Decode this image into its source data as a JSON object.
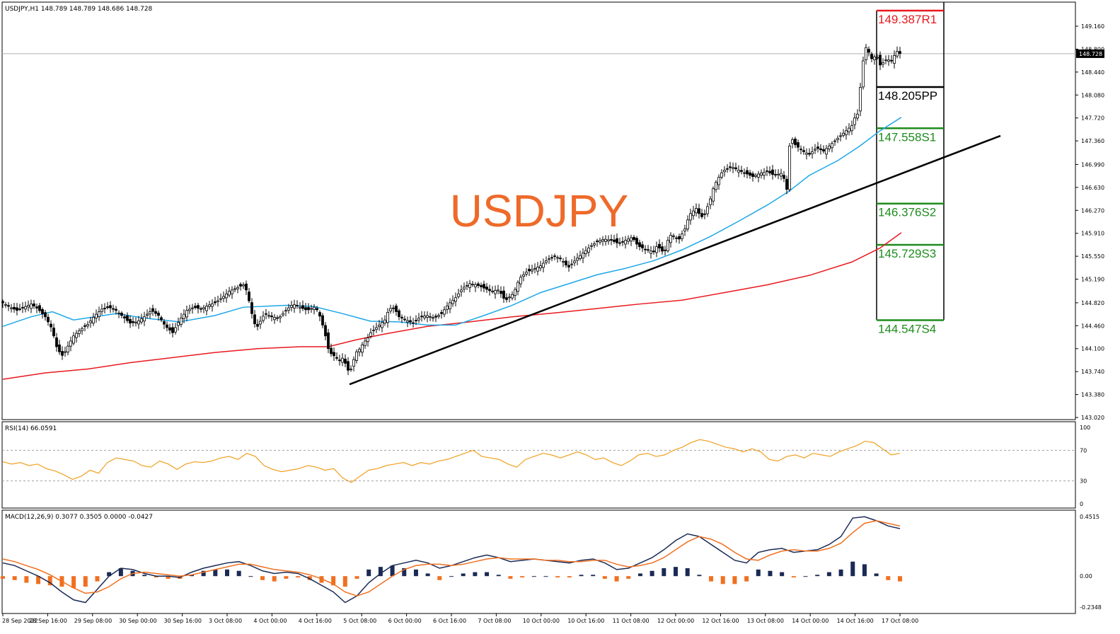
{
  "header": {
    "symbol_info": "USDJPY,H1  148.789 148.789 148.686 148.728",
    "watermark": "USDJPY"
  },
  "colors": {
    "ma_fast": "#1EA7E8",
    "ma_slow": "#E8191F",
    "trendline": "#000000",
    "rsi": "#F0A020",
    "macd_line": "#1A2A55",
    "signal_line": "#F07020",
    "hist_positive": "#1A2A55",
    "hist_negative": "#F07020",
    "pivot_resistance": "#E8191F",
    "pivot_pp": "#000000",
    "pivot_support": "#1E8C1E"
  },
  "chart_data": [
    {
      "type": "candlestick",
      "title": "USDJPY,H1",
      "header_values": {
        "open": 148.789,
        "high": 148.789,
        "low": 148.686,
        "close": 148.728
      },
      "current_price": "148.728",
      "ylim": [
        143.02,
        149.4
      ],
      "y_ticks": [
        "149.160",
        "148.800",
        "148.440",
        "148.080",
        "147.720",
        "147.360",
        "146.990",
        "146.630",
        "146.270",
        "145.910",
        "145.550",
        "145.190",
        "144.820",
        "144.460",
        "144.100",
        "143.740",
        "143.380",
        "143.020"
      ],
      "x_ticks": [
        "28 Sep 2022",
        "28 Sep 16:00",
        "29 Sep 08:00",
        "30 Sep 00:00",
        "30 Sep 16:00",
        "3 Oct 08:00",
        "4 Oct 00:00",
        "4 Oct 16:00",
        "5 Oct 08:00",
        "6 Oct 00:00",
        "6 Oct 16:00",
        "7 Oct 08:00",
        "10 Oct 00:00",
        "10 Oct 16:00",
        "11 Oct 08:00",
        "12 Oct 00:00",
        "12 Oct 16:00",
        "13 Oct 08:00",
        "14 Oct 00:00",
        "14 Oct 16:00",
        "17 Oct 08:00"
      ],
      "close_path": [
        [
          0,
          144.82
        ],
        [
          10,
          144.75
        ],
        [
          20,
          144.7
        ],
        [
          30,
          144.75
        ],
        [
          40,
          144.8
        ],
        [
          50,
          144.72
        ],
        [
          60,
          144.6
        ],
        [
          70,
          144.4
        ],
        [
          75,
          144.15
        ],
        [
          80,
          144.05
        ],
        [
          85,
          143.98
        ],
        [
          90,
          144.1
        ],
        [
          95,
          144.2
        ],
        [
          100,
          144.3
        ],
        [
          110,
          144.4
        ],
        [
          120,
          144.48
        ],
        [
          130,
          144.62
        ],
        [
          140,
          144.72
        ],
        [
          150,
          144.75
        ],
        [
          160,
          144.7
        ],
        [
          170,
          144.6
        ],
        [
          180,
          144.5
        ],
        [
          190,
          144.52
        ],
        [
          200,
          144.6
        ],
        [
          210,
          144.7
        ],
        [
          220,
          144.62
        ],
        [
          230,
          144.45
        ],
        [
          240,
          144.35
        ],
        [
          250,
          144.55
        ],
        [
          260,
          144.7
        ],
        [
          270,
          144.75
        ],
        [
          280,
          144.72
        ],
        [
          290,
          144.78
        ],
        [
          300,
          144.82
        ],
        [
          310,
          144.9
        ],
        [
          320,
          145.0
        ],
        [
          330,
          145.05
        ],
        [
          340,
          145.1
        ],
        [
          345,
          145.0
        ],
        [
          350,
          144.75
        ],
        [
          355,
          144.5
        ],
        [
          360,
          144.45
        ],
        [
          365,
          144.55
        ],
        [
          370,
          144.65
        ],
        [
          380,
          144.6
        ],
        [
          390,
          144.58
        ],
        [
          400,
          144.7
        ],
        [
          410,
          144.8
        ],
        [
          420,
          144.75
        ],
        [
          430,
          144.7
        ],
        [
          440,
          144.75
        ],
        [
          445,
          144.7
        ],
        [
          450,
          144.55
        ],
        [
          455,
          144.35
        ],
        [
          460,
          144.1
        ],
        [
          465,
          144.0
        ],
        [
          470,
          143.98
        ],
        [
          475,
          143.9
        ],
        [
          480,
          143.95
        ],
        [
          485,
          143.85
        ],
        [
          490,
          143.7
        ],
        [
          495,
          143.9
        ],
        [
          500,
          144.05
        ],
        [
          505,
          144.1
        ],
        [
          510,
          144.2
        ],
        [
          515,
          144.25
        ],
        [
          520,
          144.35
        ],
        [
          525,
          144.4
        ],
        [
          530,
          144.45
        ],
        [
          535,
          144.5
        ],
        [
          540,
          144.55
        ],
        [
          545,
          144.7
        ],
        [
          550,
          144.75
        ],
        [
          555,
          144.7
        ],
        [
          560,
          144.6
        ],
        [
          570,
          144.55
        ],
        [
          580,
          144.5
        ],
        [
          590,
          144.6
        ],
        [
          600,
          144.62
        ],
        [
          610,
          144.58
        ],
        [
          620,
          144.65
        ],
        [
          630,
          144.8
        ],
        [
          640,
          144.9
        ],
        [
          650,
          145.05
        ],
        [
          660,
          145.12
        ],
        [
          670,
          145.1
        ],
        [
          680,
          145.05
        ],
        [
          690,
          145.0
        ],
        [
          700,
          145.02
        ],
        [
          705,
          144.95
        ],
        [
          710,
          144.85
        ],
        [
          715,
          144.9
        ],
        [
          720,
          144.95
        ],
        [
          725,
          145.05
        ],
        [
          730,
          145.2
        ],
        [
          740,
          145.3
        ],
        [
          750,
          145.35
        ],
        [
          760,
          145.4
        ],
        [
          770,
          145.5
        ],
        [
          780,
          145.55
        ],
        [
          790,
          145.5
        ],
        [
          795,
          145.42
        ],
        [
          800,
          145.38
        ],
        [
          810,
          145.5
        ],
        [
          820,
          145.6
        ],
        [
          830,
          145.7
        ],
        [
          840,
          145.78
        ],
        [
          850,
          145.82
        ],
        [
          860,
          145.8
        ],
        [
          870,
          145.75
        ],
        [
          880,
          145.8
        ],
        [
          890,
          145.85
        ],
        [
          895,
          145.75
        ],
        [
          900,
          145.7
        ],
        [
          910,
          145.65
        ],
        [
          920,
          145.62
        ],
        [
          925,
          145.72
        ],
        [
          930,
          145.65
        ],
        [
          935,
          145.6
        ],
        [
          940,
          145.8
        ],
        [
          945,
          145.9
        ],
        [
          950,
          145.85
        ],
        [
          955,
          145.8
        ],
        [
          960,
          145.9
        ],
        [
          965,
          146.0
        ],
        [
          970,
          146.2
        ],
        [
          975,
          146.25
        ],
        [
          980,
          146.3
        ],
        [
          985,
          146.2
        ],
        [
          990,
          146.15
        ],
        [
          995,
          146.3
        ],
        [
          1000,
          146.45
        ],
        [
          1005,
          146.65
        ],
        [
          1010,
          146.75
        ],
        [
          1015,
          146.85
        ],
        [
          1020,
          146.9
        ],
        [
          1030,
          146.95
        ],
        [
          1040,
          146.9
        ],
        [
          1050,
          146.85
        ],
        [
          1060,
          146.8
        ],
        [
          1070,
          146.85
        ],
        [
          1080,
          146.88
        ],
        [
          1090,
          146.82
        ],
        [
          1100,
          146.85
        ],
        [
          1105,
          146.75
        ],
        [
          1108,
          146.6
        ],
        [
          1110,
          147.2
        ],
        [
          1115,
          147.4
        ],
        [
          1120,
          147.3
        ],
        [
          1130,
          147.2
        ],
        [
          1140,
          147.15
        ],
        [
          1150,
          147.25
        ],
        [
          1160,
          147.2
        ],
        [
          1170,
          147.3
        ],
        [
          1180,
          147.4
        ],
        [
          1190,
          147.5
        ],
        [
          1200,
          147.6
        ],
        [
          1205,
          147.75
        ],
        [
          1210,
          147.8
        ],
        [
          1212,
          148.2
        ],
        [
          1215,
          148.5
        ],
        [
          1218,
          148.85
        ],
        [
          1222,
          148.8
        ],
        [
          1228,
          148.65
        ],
        [
          1235,
          148.7
        ],
        [
          1240,
          148.55
        ],
        [
          1245,
          148.6
        ],
        [
          1250,
          148.65
        ],
        [
          1255,
          148.6
        ],
        [
          1260,
          148.7
        ],
        [
          1265,
          148.78
        ],
        [
          1268,
          148.73
        ]
      ],
      "ma_fast_path": [
        [
          0,
          144.45
        ],
        [
          40,
          144.6
        ],
        [
          70,
          144.68
        ],
        [
          100,
          144.55
        ],
        [
          130,
          144.6
        ],
        [
          160,
          144.65
        ],
        [
          200,
          144.58
        ],
        [
          250,
          144.52
        ],
        [
          300,
          144.62
        ],
        [
          340,
          144.75
        ],
        [
          400,
          144.78
        ],
        [
          440,
          144.76
        ],
        [
          480,
          144.65
        ],
        [
          520,
          144.53
        ],
        [
          560,
          144.52
        ],
        [
          600,
          144.47
        ],
        [
          640,
          144.47
        ],
        [
          680,
          144.62
        ],
        [
          720,
          144.78
        ],
        [
          760,
          144.98
        ],
        [
          800,
          145.12
        ],
        [
          840,
          145.26
        ],
        [
          880,
          145.36
        ],
        [
          920,
          145.48
        ],
        [
          960,
          145.65
        ],
        [
          1000,
          145.86
        ],
        [
          1040,
          146.1
        ],
        [
          1080,
          146.35
        ],
        [
          1110,
          146.56
        ],
        [
          1140,
          146.82
        ],
        [
          1180,
          147.05
        ],
        [
          1210,
          147.27
        ],
        [
          1240,
          147.52
        ],
        [
          1270,
          147.73
        ]
      ],
      "ma_slow_path": [
        [
          0,
          143.62
        ],
        [
          60,
          143.72
        ],
        [
          120,
          143.78
        ],
        [
          180,
          143.88
        ],
        [
          240,
          143.96
        ],
        [
          300,
          144.04
        ],
        [
          360,
          144.1
        ],
        [
          420,
          144.13
        ],
        [
          460,
          144.13
        ],
        [
          500,
          144.24
        ],
        [
          540,
          144.33
        ],
        [
          600,
          144.45
        ],
        [
          660,
          144.52
        ],
        [
          720,
          144.6
        ],
        [
          780,
          144.66
        ],
        [
          840,
          144.73
        ],
        [
          900,
          144.8
        ],
        [
          960,
          144.86
        ],
        [
          1020,
          144.98
        ],
        [
          1080,
          145.1
        ],
        [
          1140,
          145.25
        ],
        [
          1200,
          145.46
        ],
        [
          1240,
          145.68
        ],
        [
          1270,
          145.92
        ]
      ],
      "trendline": [
        [
          490,
          143.54
        ],
        [
          1410,
          147.44
        ]
      ],
      "pivot_levels": [
        {
          "value": 149.387,
          "label": "149.387R1",
          "kind": "resistance"
        },
        {
          "value": 148.205,
          "label": "148.205PP",
          "kind": "pivot"
        },
        {
          "value": 147.558,
          "label": "147.558S1",
          "kind": "support"
        },
        {
          "value": 146.376,
          "label": "146.376S2",
          "kind": "support"
        },
        {
          "value": 145.729,
          "label": "145.729S3",
          "kind": "support"
        },
        {
          "value": 144.547,
          "label": "144.547S4",
          "kind": "support"
        }
      ]
    },
    {
      "type": "line",
      "title": "RSI(14) 66.0591",
      "ylim": [
        0,
        100
      ],
      "y_ticks": [
        "100",
        "70",
        "30",
        "0"
      ],
      "levels": [
        70,
        30
      ],
      "current_value": 66.0591,
      "values": [
        55,
        52,
        54,
        50,
        52,
        46,
        43,
        38,
        32,
        36,
        44,
        40,
        54,
        60,
        58,
        56,
        50,
        48,
        56,
        52,
        45,
        52,
        55,
        54,
        56,
        60,
        62,
        58,
        66,
        62,
        50,
        45,
        42,
        44,
        46,
        50,
        48,
        44,
        46,
        34,
        28,
        36,
        44,
        46,
        50,
        52,
        54,
        50,
        54,
        52,
        56,
        58,
        62,
        66,
        70,
        62,
        60,
        58,
        52,
        48,
        58,
        62,
        66,
        64,
        60,
        64,
        68,
        64,
        58,
        60,
        54,
        50,
        56,
        64,
        66,
        62,
        64,
        70,
        74,
        80,
        84,
        82,
        78,
        74,
        72,
        68,
        72,
        68,
        58,
        56,
        62,
        64,
        60,
        66,
        64,
        62,
        68,
        72,
        76,
        82,
        80,
        72,
        64,
        66
      ]
    },
    {
      "type": "line",
      "title": "MACD(12,26,9) 0.3077 0.3505 0.0000 -0.0427",
      "ylim": [
        -0.2348,
        0.4515
      ],
      "y_ticks": [
        "0.4515",
        "0.00",
        "-0.2348"
      ],
      "macd": [
        0.1,
        0.08,
        0.04,
        0.0,
        -0.05,
        -0.12,
        -0.18,
        -0.2,
        -0.1,
        0.0,
        0.06,
        0.05,
        0.02,
        0.0,
        0.0,
        -0.01,
        0.03,
        0.06,
        0.08,
        0.1,
        0.11,
        0.08,
        0.04,
        0.02,
        0.03,
        0.02,
        -0.02,
        -0.07,
        -0.12,
        -0.2,
        -0.15,
        -0.05,
        0.02,
        0.08,
        0.1,
        0.12,
        0.1,
        0.06,
        0.08,
        0.11,
        0.14,
        0.16,
        0.14,
        0.11,
        0.12,
        0.13,
        0.12,
        0.11,
        0.1,
        0.12,
        0.13,
        0.1,
        0.05,
        0.06,
        0.1,
        0.14,
        0.2,
        0.27,
        0.32,
        0.3,
        0.24,
        0.18,
        0.12,
        0.1,
        0.18,
        0.2,
        0.21,
        0.18,
        0.19,
        0.2,
        0.24,
        0.3,
        0.44,
        0.45,
        0.42,
        0.38,
        0.36
      ],
      "signal": [
        0.13,
        0.11,
        0.08,
        0.05,
        0.01,
        -0.04,
        -0.09,
        -0.13,
        -0.12,
        -0.08,
        -0.02,
        0.02,
        0.03,
        0.02,
        0.01,
        0.0,
        0.01,
        0.03,
        0.05,
        0.07,
        0.09,
        0.09,
        0.07,
        0.05,
        0.04,
        0.03,
        0.01,
        -0.02,
        -0.06,
        -0.12,
        -0.15,
        -0.12,
        -0.06,
        0.0,
        0.05,
        0.08,
        0.09,
        0.09,
        0.08,
        0.09,
        0.11,
        0.13,
        0.14,
        0.13,
        0.13,
        0.13,
        0.12,
        0.12,
        0.11,
        0.11,
        0.12,
        0.12,
        0.09,
        0.07,
        0.08,
        0.1,
        0.14,
        0.2,
        0.26,
        0.3,
        0.28,
        0.24,
        0.18,
        0.13,
        0.12,
        0.16,
        0.19,
        0.2,
        0.19,
        0.19,
        0.21,
        0.25,
        0.33,
        0.4,
        0.42,
        0.4,
        0.38
      ],
      "histogram": [
        -0.02,
        -0.03,
        -0.05,
        -0.06,
        -0.07,
        -0.08,
        -0.09,
        -0.08,
        -0.04,
        0.03,
        0.06,
        0.04,
        0.01,
        -0.01,
        -0.02,
        -0.02,
        0.01,
        0.04,
        0.05,
        0.05,
        0.04,
        0.0,
        -0.03,
        -0.04,
        -0.02,
        -0.01,
        -0.03,
        -0.05,
        -0.07,
        -0.08,
        -0.02,
        0.05,
        0.07,
        0.08,
        0.06,
        0.05,
        0.02,
        -0.03,
        0.0,
        0.02,
        0.03,
        0.03,
        0.01,
        -0.02,
        -0.01,
        0.0,
        0.0,
        -0.01,
        -0.01,
        0.01,
        0.01,
        -0.02,
        -0.04,
        -0.02,
        0.02,
        0.04,
        0.06,
        0.07,
        0.06,
        0.01,
        -0.04,
        -0.06,
        -0.06,
        -0.04,
        0.05,
        0.04,
        0.03,
        -0.01,
        0.0,
        0.01,
        0.03,
        0.05,
        0.11,
        0.09,
        0.02,
        -0.03,
        -0.04
      ]
    }
  ]
}
